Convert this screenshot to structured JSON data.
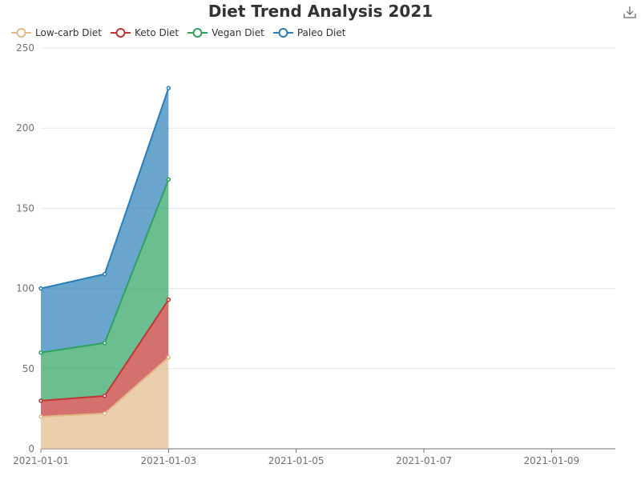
{
  "chart_data": {
    "type": "area",
    "stacked": true,
    "title": "Diet Trend Analysis 2021",
    "x": [
      "2021-01-01",
      "2021-01-02",
      "2021-01-03"
    ],
    "xlim": [
      "2021-01-01",
      "2021-01-10"
    ],
    "x_tick_labels": [
      "2021-01-01",
      "2021-01-03",
      "2021-01-05",
      "2021-01-07",
      "2021-01-09"
    ],
    "ylim": [
      0,
      250
    ],
    "y_tick_labels": [
      "0",
      "50",
      "100",
      "150",
      "200",
      "250"
    ],
    "grid": true,
    "legend_position": "top-left",
    "series": [
      {
        "name": "Low-carb Diet",
        "color": "#e2b987",
        "values": [
          20,
          22,
          57
        ]
      },
      {
        "name": "Keto Diet",
        "color": "#c23531",
        "values": [
          10,
          11,
          36
        ]
      },
      {
        "name": "Vegan Diet",
        "color": "#2ca25f",
        "values": [
          30,
          33,
          75
        ]
      },
      {
        "name": "Paleo Diet",
        "color": "#2b7fb8",
        "values": [
          40,
          43,
          57
        ]
      }
    ]
  },
  "toolbar": {
    "download_icon": "download-icon"
  }
}
